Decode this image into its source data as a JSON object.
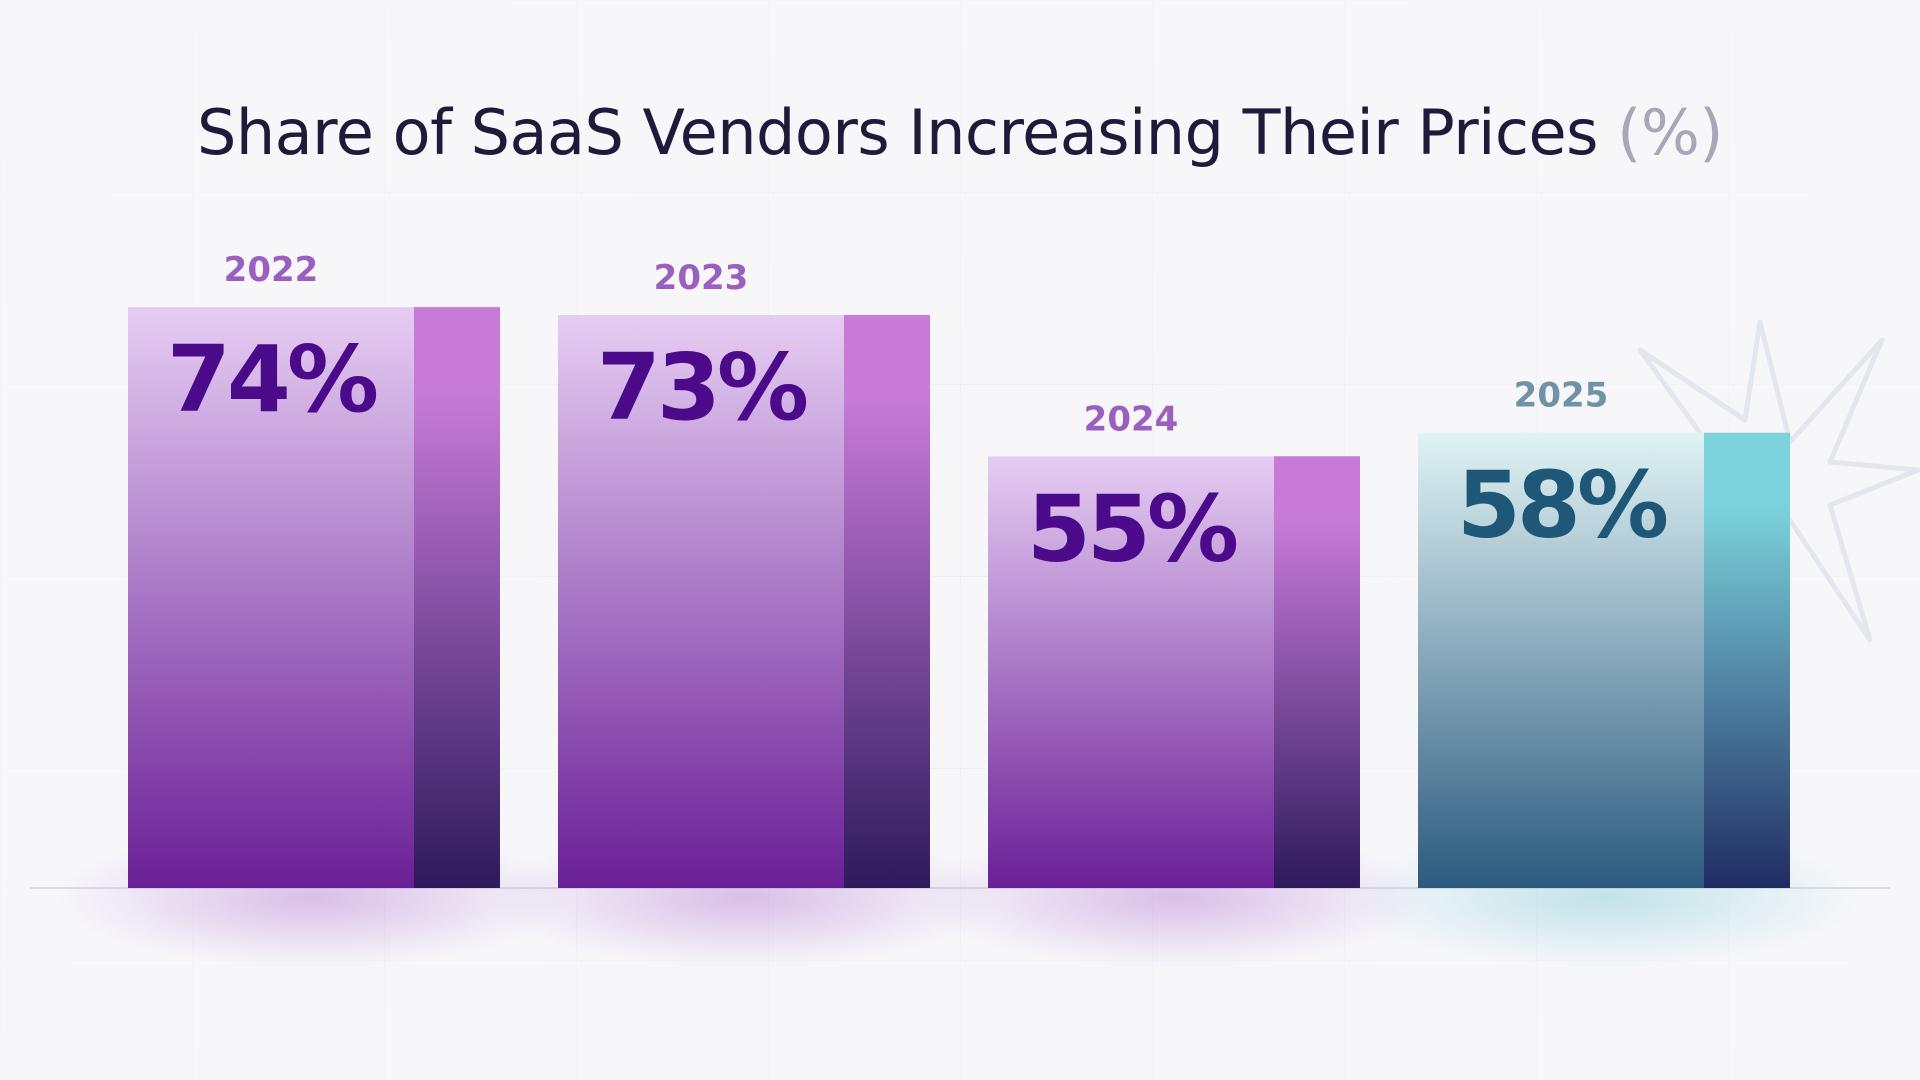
{
  "title": "Share of SaaS Vendors Increasing Their Prices",
  "title_unit": "(%)",
  "colors": {
    "purple_face_top": "#e6cdf3",
    "purple_face_bottom": "#6a1f96",
    "purple_side_top": "#c77ad8",
    "purple_side_bottom": "#2d1a5c",
    "purple_value": "#4a0a8a",
    "purple_year": "#9a5fbf",
    "teal_face_top": "#e0f3f5",
    "teal_face_bottom": "#2c5a7e",
    "teal_side_top": "#7dd4dd",
    "teal_side_bottom": "#202c62",
    "teal_value": "#1f5778",
    "teal_year": "#6f93a6"
  },
  "chart_data": {
    "type": "bar",
    "title": "Share of SaaS Vendors Increasing Their Prices (%)",
    "categories": [
      "2022",
      "2023",
      "2024",
      "2025"
    ],
    "values": [
      74,
      73,
      55,
      58
    ],
    "value_labels": [
      "74%",
      "73%",
      "55%",
      "58%"
    ],
    "highlight": [
      "purple",
      "purple",
      "purple",
      "teal"
    ],
    "xlabel": "",
    "ylabel": "",
    "grid": false,
    "legend": "none"
  }
}
